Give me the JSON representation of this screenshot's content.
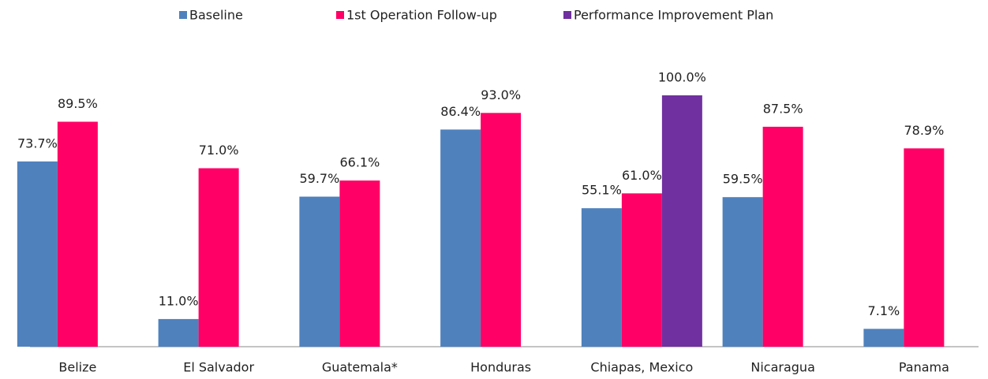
{
  "chart_data": {
    "type": "bar",
    "categories": [
      "Belize",
      "El Salvador",
      "Guatemala*",
      "Honduras",
      "Chiapas, Mexico",
      "Nicaragua",
      "Panama"
    ],
    "series": [
      {
        "name": "Baseline",
        "color": "#4f81bd",
        "values": [
          73.7,
          11.0,
          59.7,
          86.4,
          55.1,
          59.5,
          7.1
        ],
        "value_labels": [
          "73.7%",
          "11.0%",
          "59.7%",
          "86.4%",
          "55.1%",
          "59.5%",
          "7.1%"
        ]
      },
      {
        "name": "1st Operation Follow-up",
        "color": "#ff0066",
        "values": [
          89.5,
          71.0,
          66.1,
          93.0,
          61.0,
          87.5,
          78.9
        ],
        "value_labels": [
          "89.5%",
          "71.0%",
          "66.1%",
          "93.0%",
          "61.0%",
          "87.5%",
          "78.9%"
        ]
      },
      {
        "name": "Performance Improvement Plan",
        "color": "#7030a0",
        "values": [
          null,
          null,
          null,
          null,
          100.0,
          null,
          null
        ],
        "value_labels": [
          null,
          null,
          null,
          null,
          "100.0%",
          null,
          null
        ]
      }
    ],
    "ylim": [
      0,
      100
    ],
    "legend": "top"
  }
}
